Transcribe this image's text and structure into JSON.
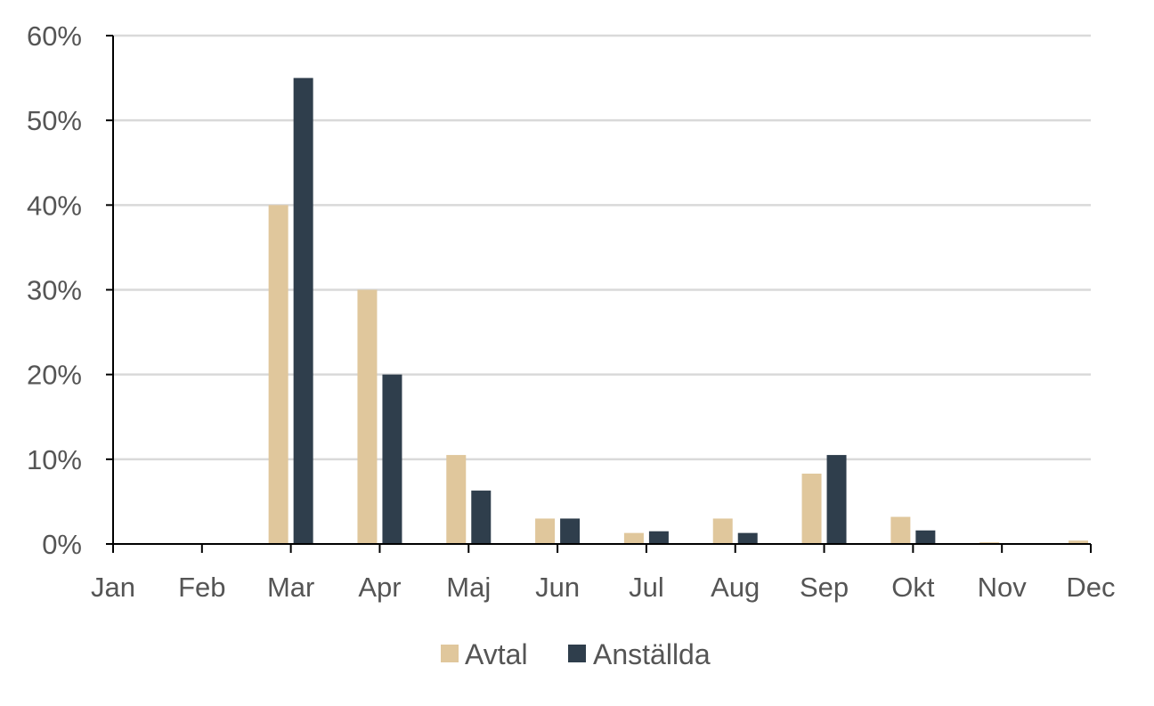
{
  "chart_data": {
    "type": "bar",
    "categories": [
      "Jan",
      "Feb",
      "Mar",
      "Apr",
      "Maj",
      "Jun",
      "Jul",
      "Aug",
      "Sep",
      "Okt",
      "Nov",
      "Dec"
    ],
    "series": [
      {
        "name": "Avtal",
        "color": "#E0C79C",
        "values": [
          0,
          0,
          40,
          30,
          10.5,
          3,
          1.3,
          3,
          8.3,
          3.2,
          0.2,
          0.4
        ]
      },
      {
        "name": "Anställda",
        "color": "#2F3E4C",
        "values": [
          0,
          0,
          55,
          20,
          6.3,
          3,
          1.5,
          1.3,
          10.5,
          1.6,
          0,
          0
        ]
      }
    ],
    "yticks": [
      0,
      10,
      20,
      30,
      40,
      50,
      60
    ],
    "ytick_labels": [
      "0%",
      "10%",
      "20%",
      "30%",
      "40%",
      "50%",
      "60%"
    ],
    "ylim": [
      0,
      60
    ],
    "grid": true,
    "legend_position": "bottom-center"
  }
}
